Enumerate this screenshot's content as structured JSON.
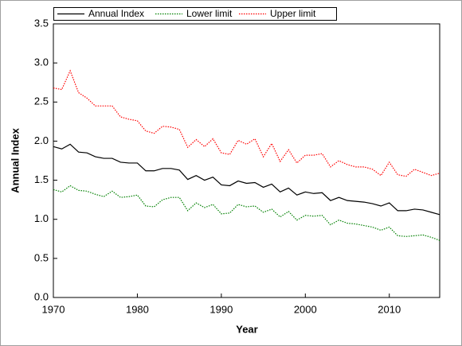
{
  "chart_data": {
    "type": "line",
    "x_label": "Year",
    "y_label": "Annual Index",
    "x": [
      1970,
      1971,
      1972,
      1973,
      1974,
      1975,
      1976,
      1977,
      1978,
      1979,
      1980,
      1981,
      1982,
      1983,
      1984,
      1985,
      1986,
      1987,
      1988,
      1989,
      1990,
      1991,
      1992,
      1993,
      1994,
      1995,
      1996,
      1997,
      1998,
      1999,
      2000,
      2001,
      2002,
      2003,
      2004,
      2005,
      2006,
      2007,
      2008,
      2009,
      2010,
      2011,
      2012,
      2013,
      2014,
      2015,
      2016
    ],
    "series": [
      {
        "name": "Annual Index",
        "color": "#000000",
        "dash": "none",
        "values": [
          1.93,
          1.9,
          1.96,
          1.86,
          1.85,
          1.8,
          1.78,
          1.78,
          1.73,
          1.72,
          1.72,
          1.62,
          1.62,
          1.65,
          1.65,
          1.63,
          1.51,
          1.56,
          1.5,
          1.54,
          1.44,
          1.43,
          1.49,
          1.46,
          1.47,
          1.41,
          1.45,
          1.35,
          1.4,
          1.31,
          1.35,
          1.33,
          1.34,
          1.24,
          1.28,
          1.24,
          1.23,
          1.22,
          1.2,
          1.17,
          1.21,
          1.11,
          1.11,
          1.13,
          1.12,
          1.09,
          1.06
        ]
      },
      {
        "name": "Lower limit",
        "color": "#008000",
        "dash": "1.5 1.5",
        "values": [
          1.38,
          1.35,
          1.43,
          1.37,
          1.36,
          1.32,
          1.29,
          1.36,
          1.28,
          1.29,
          1.31,
          1.17,
          1.16,
          1.25,
          1.28,
          1.28,
          1.11,
          1.21,
          1.15,
          1.19,
          1.07,
          1.08,
          1.19,
          1.16,
          1.17,
          1.09,
          1.13,
          1.03,
          1.1,
          0.99,
          1.05,
          1.04,
          1.05,
          0.93,
          0.99,
          0.95,
          0.94,
          0.92,
          0.9,
          0.86,
          0.9,
          0.79,
          0.78,
          0.79,
          0.8,
          0.77,
          0.73
        ]
      },
      {
        "name": "Upper limit",
        "color": "#ff0000",
        "dash": "1.5 1.5",
        "values": [
          2.68,
          2.66,
          2.9,
          2.62,
          2.55,
          2.45,
          2.45,
          2.45,
          2.31,
          2.28,
          2.26,
          2.13,
          2.1,
          2.19,
          2.18,
          2.15,
          1.92,
          2.02,
          1.93,
          2.03,
          1.85,
          1.83,
          2.01,
          1.96,
          2.03,
          1.8,
          1.97,
          1.74,
          1.89,
          1.72,
          1.82,
          1.82,
          1.84,
          1.67,
          1.75,
          1.7,
          1.67,
          1.67,
          1.64,
          1.56,
          1.73,
          1.57,
          1.55,
          1.64,
          1.6,
          1.56,
          1.59
        ]
      }
    ],
    "xlim": [
      1970,
      2016
    ],
    "xticks": [
      1970,
      1980,
      1990,
      2000,
      2010
    ],
    "ylim": [
      0,
      3.5
    ],
    "yticks": [
      {
        "value": 0,
        "label": "0.0"
      },
      {
        "value": 0.5,
        "label": "0.5"
      },
      {
        "value": 1,
        "label": "1.0"
      },
      {
        "value": 1.5,
        "label": "1.5"
      },
      {
        "value": 2,
        "label": "2.0"
      },
      {
        "value": 2.5,
        "label": "2.5"
      },
      {
        "value": 3,
        "label": "3.0"
      },
      {
        "value": 3.5,
        "label": "3.5"
      }
    ],
    "grid": false
  }
}
